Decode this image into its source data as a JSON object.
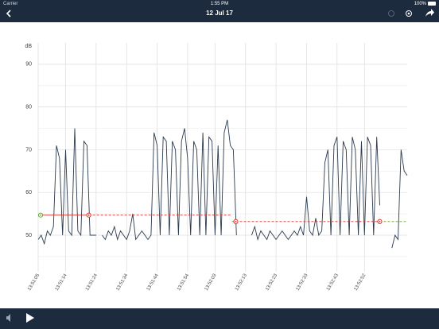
{
  "status_bar": {
    "carrier": "Carrier",
    "time": "1:55 PM",
    "battery": "100%"
  },
  "nav_bar": {
    "title": "12 Jul 17"
  },
  "chart_data": {
    "type": "line",
    "y_label": "dB",
    "x": [
      0,
      1,
      2,
      3,
      4,
      5,
      6,
      7,
      8,
      9,
      10,
      11,
      12,
      13,
      14,
      15,
      16,
      17,
      18,
      19,
      20,
      21,
      22,
      23,
      24,
      25,
      26,
      27,
      28,
      29,
      30,
      31,
      32,
      33,
      34,
      35,
      36,
      37,
      38,
      39,
      40,
      41,
      42,
      43,
      44,
      45,
      46,
      47,
      48,
      49,
      50,
      51,
      52,
      53,
      54,
      55,
      56,
      57,
      58,
      59,
      60,
      61,
      62,
      63,
      64,
      65,
      66,
      67,
      68,
      69,
      70,
      71,
      72,
      73,
      74,
      75,
      76,
      77,
      78,
      79,
      80,
      81,
      82,
      83,
      84,
      85,
      86,
      87,
      88,
      89,
      90,
      91,
      92,
      93,
      94,
      95,
      96,
      97,
      98,
      99,
      100,
      101,
      102,
      103,
      104,
      105,
      106,
      107,
      108,
      109,
      110,
      111,
      112,
      113,
      114,
      115,
      116,
      117,
      118,
      119,
      120,
      121
    ],
    "series": [
      {
        "color": "#2b3a4e",
        "values": [
          49,
          50,
          48,
          51,
          50,
          52,
          71,
          68,
          50,
          70,
          51,
          50,
          75,
          51,
          50,
          72,
          71,
          50,
          50,
          50,
          null,
          50,
          49,
          51,
          50,
          52,
          49,
          51,
          50,
          49,
          51,
          55,
          49,
          50,
          51,
          50,
          49,
          50,
          74,
          71,
          50,
          73,
          72,
          50,
          72,
          70,
          50,
          72,
          75,
          68,
          50,
          72,
          70,
          50,
          74,
          50,
          73,
          72,
          50,
          71,
          50,
          74,
          77,
          71,
          70,
          50,
          null,
          null,
          null,
          null,
          50,
          52,
          49,
          51,
          50,
          49,
          51,
          50,
          49,
          50,
          51,
          50,
          49,
          50,
          51,
          50,
          52,
          50,
          59,
          51,
          50,
          54,
          50,
          51,
          67,
          70,
          50,
          71,
          73,
          50,
          72,
          70,
          50,
          73,
          70,
          50,
          72,
          50,
          73,
          71,
          50,
          73,
          57,
          null,
          null,
          null,
          47,
          50,
          49,
          70,
          65,
          64
        ]
      }
    ],
    "xlim": [
      0,
      121
    ],
    "ylim": [
      42,
      95
    ],
    "yticks": [
      50,
      60,
      70,
      80,
      90
    ],
    "minor_yticks": [
      45,
      55,
      65,
      75,
      85
    ],
    "xticks": [
      {
        "value": 0,
        "label": "13:51:05"
      },
      {
        "value": 9,
        "label": "13:51:14"
      },
      {
        "value": 19,
        "label": "13:51:24"
      },
      {
        "value": 29,
        "label": "13:51:34"
      },
      {
        "value": 39,
        "label": "13:51:44"
      },
      {
        "value": 49,
        "label": "13:51:54"
      },
      {
        "value": 58,
        "label": "13:52:03"
      },
      {
        "value": 68,
        "label": "13:52:13"
      },
      {
        "value": 78,
        "label": "13:52:23"
      },
      {
        "value": 88,
        "label": "13:52:33"
      },
      {
        "value": 98,
        "label": "13:52:43"
      },
      {
        "value": 107,
        "label": "13:52:52"
      }
    ],
    "grid": true,
    "segments": [
      {
        "x": [
          0.8,
          16.6
        ],
        "y": 54.7,
        "color": "#d9302c",
        "dashed": false
      },
      {
        "x": [
          16.6,
          63.5
        ],
        "y": 54.7,
        "color": "#d9302c",
        "dashed": true
      },
      {
        "x": [
          63.5,
          64.8
        ],
        "y": 53.2,
        "color": "#6aa33a",
        "dashed": false
      },
      {
        "x": [
          64.8,
          112
        ],
        "y": 53.2,
        "color": "#d9302c",
        "dashed": true
      },
      {
        "x": [
          112,
          121
        ],
        "y": 53.2,
        "color": "#6aa33a",
        "dashed": true
      }
    ],
    "markers": [
      {
        "x": 0.8,
        "y": 54.7,
        "color": "#6aa33a"
      },
      {
        "x": 16.6,
        "y": 54.7,
        "color": "#d9302c"
      },
      {
        "x": 64.8,
        "y": 53.2,
        "color": "#d9302c"
      },
      {
        "x": 112,
        "y": 53.2,
        "color": "#d9302c"
      }
    ]
  }
}
